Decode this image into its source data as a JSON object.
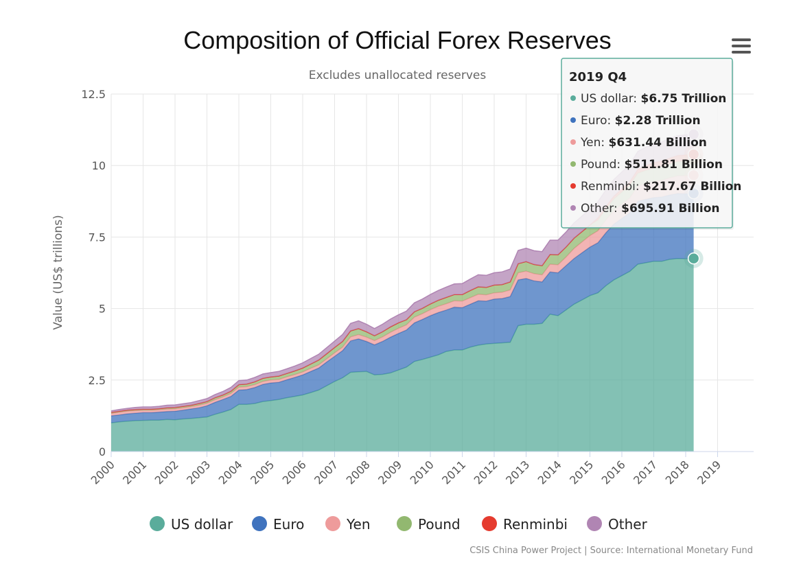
{
  "chart_data": {
    "type": "area",
    "stacked": true,
    "title": "Composition of Official Forex Reserves",
    "subtitle": "Excludes unallocated reserves",
    "ylabel": "Value (US$ trillions)",
    "xlabel": "",
    "ylim": [
      0,
      12.5
    ],
    "yticks": [
      "0",
      "2.5",
      "5",
      "7.5",
      "10",
      "12.5"
    ],
    "xticks": [
      "2000",
      "2001",
      "2002",
      "2003",
      "2004",
      "2005",
      "2006",
      "2007",
      "2008",
      "2009",
      "2010",
      "2011",
      "2012",
      "2013",
      "2014",
      "2015",
      "2016",
      "2017",
      "2018",
      "2019"
    ],
    "x_start": 2000.0,
    "x_step": 0.25,
    "series": [
      {
        "name": "US dollar",
        "color": "#5aac9b",
        "values": [
          1.0,
          1.04,
          1.06,
          1.08,
          1.09,
          1.1,
          1.1,
          1.12,
          1.11,
          1.14,
          1.16,
          1.18,
          1.21,
          1.3,
          1.38,
          1.47,
          1.65,
          1.65,
          1.68,
          1.75,
          1.78,
          1.82,
          1.88,
          1.93,
          1.98,
          2.06,
          2.15,
          2.3,
          2.45,
          2.58,
          2.77,
          2.79,
          2.8,
          2.68,
          2.7,
          2.75,
          2.85,
          2.95,
          3.15,
          3.22,
          3.3,
          3.38,
          3.5,
          3.55,
          3.55,
          3.65,
          3.72,
          3.76,
          3.78,
          3.8,
          3.82,
          4.4,
          4.45,
          4.45,
          4.48,
          4.8,
          4.75,
          4.95,
          5.15,
          5.3,
          5.45,
          5.55,
          5.8,
          6.0,
          6.15,
          6.3,
          6.55,
          6.6,
          6.65,
          6.65,
          6.72,
          6.75,
          6.74,
          6.75
        ]
      },
      {
        "name": "Euro",
        "color": "#3f73be",
        "values": [
          0.25,
          0.24,
          0.26,
          0.26,
          0.27,
          0.26,
          0.28,
          0.28,
          0.3,
          0.31,
          0.33,
          0.35,
          0.39,
          0.42,
          0.44,
          0.46,
          0.5,
          0.52,
          0.56,
          0.6,
          0.62,
          0.6,
          0.63,
          0.66,
          0.7,
          0.74,
          0.77,
          0.83,
          0.88,
          0.95,
          1.1,
          1.15,
          1.05,
          1.05,
          1.15,
          1.25,
          1.28,
          1.3,
          1.35,
          1.4,
          1.45,
          1.48,
          1.45,
          1.5,
          1.48,
          1.5,
          1.55,
          1.5,
          1.55,
          1.55,
          1.6,
          1.6,
          1.6,
          1.52,
          1.45,
          1.48,
          1.5,
          1.55,
          1.6,
          1.65,
          1.7,
          1.75,
          1.85,
          1.95,
          2.0,
          2.05,
          2.2,
          2.22,
          2.23,
          2.25,
          2.25,
          2.27,
          2.27,
          2.28
        ]
      },
      {
        "name": "Yen",
        "color": "#ee9b9b",
        "values": [
          0.08,
          0.09,
          0.09,
          0.09,
          0.08,
          0.08,
          0.08,
          0.08,
          0.08,
          0.08,
          0.08,
          0.09,
          0.09,
          0.09,
          0.09,
          0.1,
          0.1,
          0.1,
          0.1,
          0.1,
          0.1,
          0.1,
          0.1,
          0.1,
          0.1,
          0.11,
          0.11,
          0.11,
          0.12,
          0.12,
          0.14,
          0.15,
          0.15,
          0.15,
          0.16,
          0.17,
          0.18,
          0.18,
          0.2,
          0.2,
          0.21,
          0.22,
          0.22,
          0.22,
          0.23,
          0.23,
          0.23,
          0.22,
          0.22,
          0.22,
          0.23,
          0.25,
          0.26,
          0.25,
          0.25,
          0.27,
          0.28,
          0.3,
          0.35,
          0.38,
          0.4,
          0.42,
          0.45,
          0.48,
          0.5,
          0.52,
          0.53,
          0.55,
          0.56,
          0.58,
          0.6,
          0.62,
          0.63,
          0.63
        ]
      },
      {
        "name": "Pound",
        "color": "#92b870",
        "values": [
          0.04,
          0.04,
          0.04,
          0.04,
          0.04,
          0.04,
          0.04,
          0.05,
          0.05,
          0.05,
          0.05,
          0.06,
          0.06,
          0.07,
          0.07,
          0.08,
          0.09,
          0.09,
          0.1,
          0.11,
          0.11,
          0.12,
          0.12,
          0.13,
          0.14,
          0.15,
          0.17,
          0.18,
          0.19,
          0.2,
          0.21,
          0.21,
          0.19,
          0.17,
          0.18,
          0.19,
          0.19,
          0.18,
          0.19,
          0.19,
          0.2,
          0.21,
          0.22,
          0.22,
          0.23,
          0.25,
          0.26,
          0.26,
          0.27,
          0.27,
          0.28,
          0.32,
          0.33,
          0.32,
          0.32,
          0.34,
          0.35,
          0.35,
          0.36,
          0.36,
          0.37,
          0.37,
          0.38,
          0.4,
          0.42,
          0.44,
          0.45,
          0.46,
          0.47,
          0.48,
          0.49,
          0.5,
          0.51,
          0.51
        ]
      },
      {
        "name": "Renminbi",
        "color": "#e53b2f",
        "values": [
          0,
          0,
          0,
          0,
          0,
          0,
          0,
          0,
          0,
          0,
          0,
          0,
          0,
          0,
          0,
          0,
          0,
          0,
          0,
          0,
          0,
          0,
          0,
          0,
          0,
          0,
          0,
          0,
          0,
          0,
          0,
          0,
          0,
          0,
          0,
          0,
          0,
          0,
          0,
          0,
          0,
          0,
          0,
          0,
          0,
          0,
          0,
          0,
          0,
          0,
          0,
          0,
          0,
          0,
          0,
          0,
          0,
          0,
          0,
          0,
          0,
          0.08,
          0.09,
          0.1,
          0.11,
          0.12,
          0.14,
          0.17,
          0.19,
          0.2,
          0.2,
          0.21,
          0.22,
          0.22
        ]
      },
      {
        "name": "Other",
        "color": "#b085b3",
        "values": [
          0.05,
          0.06,
          0.06,
          0.07,
          0.08,
          0.08,
          0.08,
          0.09,
          0.09,
          0.09,
          0.09,
          0.1,
          0.1,
          0.11,
          0.12,
          0.13,
          0.14,
          0.14,
          0.15,
          0.15,
          0.15,
          0.16,
          0.16,
          0.17,
          0.18,
          0.19,
          0.2,
          0.21,
          0.22,
          0.24,
          0.26,
          0.27,
          0.26,
          0.25,
          0.26,
          0.27,
          0.28,
          0.3,
          0.31,
          0.32,
          0.33,
          0.34,
          0.36,
          0.37,
          0.38,
          0.4,
          0.42,
          0.42,
          0.43,
          0.44,
          0.45,
          0.46,
          0.47,
          0.48,
          0.49,
          0.5,
          0.51,
          0.52,
          0.53,
          0.54,
          0.55,
          0.56,
          0.57,
          0.58,
          0.59,
          0.6,
          0.62,
          0.64,
          0.65,
          0.66,
          0.68,
          0.69,
          0.7,
          0.7
        ]
      }
    ],
    "tooltip": {
      "title": "2019 Q4",
      "rows": [
        {
          "label": "US dollar",
          "value": "$6.75 Trillion",
          "color": "#5aac9b"
        },
        {
          "label": "Euro",
          "value": "$2.28 Trillion",
          "color": "#3f73be"
        },
        {
          "label": "Yen",
          "value": "$631.44 Billion",
          "color": "#ee9b9b"
        },
        {
          "label": "Pound",
          "value": "$511.81 Billion",
          "color": "#92b870"
        },
        {
          "label": "Renminbi",
          "value": "$217.67 Billion",
          "color": "#e53b2f"
        },
        {
          "label": "Other",
          "value": "$695.91 Billion",
          "color": "#b085b3"
        }
      ]
    },
    "legend": {
      "position": "bottom"
    },
    "credits": "CSIS China Power Project | Source: International Monetary Fund"
  },
  "menu_icon": "hamburger-menu-icon"
}
